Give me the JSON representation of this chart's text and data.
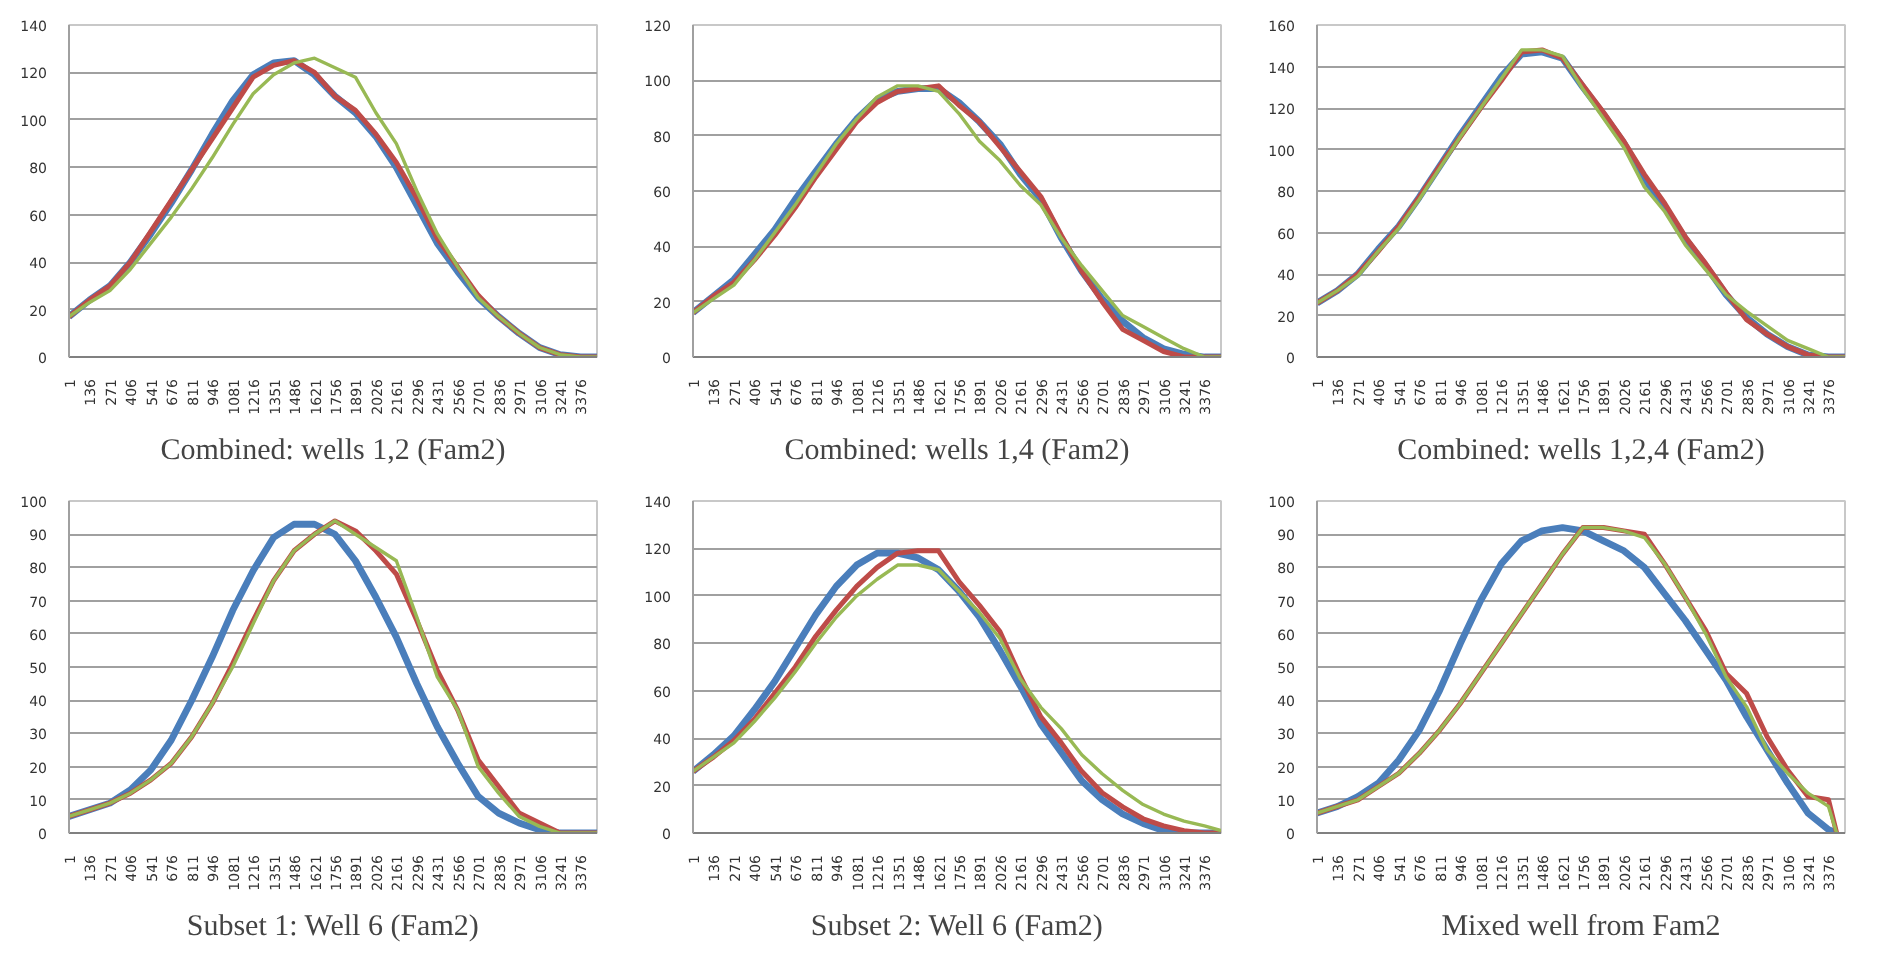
{
  "chart_data": [
    {
      "type": "line",
      "title": "Combined: wells 1,2 (Fam2)",
      "x": [
        1,
        136,
        271,
        406,
        541,
        676,
        811,
        946,
        1081,
        1216,
        1351,
        1486,
        1621,
        1756,
        1891,
        2026,
        2161,
        2296,
        2431,
        2566,
        2701,
        2836,
        2971,
        3106,
        3241,
        3376,
        3485
      ],
      "xlim": [
        1,
        3485
      ],
      "xticks": [
        1,
        136,
        271,
        406,
        541,
        676,
        811,
        946,
        1081,
        1216,
        1351,
        1486,
        1621,
        1756,
        1891,
        2026,
        2161,
        2296,
        2431,
        2566,
        2701,
        2836,
        2971,
        3106,
        3241,
        3376
      ],
      "ylim": [
        0,
        140
      ],
      "yticks": [
        0,
        20,
        40,
        60,
        80,
        100,
        120,
        140
      ],
      "grid": "y",
      "series": [
        {
          "color": "#4a7ebb",
          "values": [
            17,
            24,
            30,
            40,
            52,
            65,
            79,
            94,
            108,
            119,
            124,
            125,
            119,
            110,
            103,
            93,
            80,
            64,
            48,
            36,
            25,
            17,
            10,
            4,
            1,
            0,
            0
          ]
        },
        {
          "color": "#be4b48",
          "values": [
            17,
            24,
            30,
            40,
            53,
            66,
            79,
            92,
            105,
            118,
            123,
            125,
            120,
            110,
            104,
            94,
            82,
            67,
            50,
            38,
            26,
            17,
            10,
            4,
            1,
            0,
            0
          ]
        },
        {
          "color": "#98b954",
          "values": [
            17,
            23,
            28,
            37,
            48,
            59,
            71,
            84,
            98,
            111,
            119,
            124,
            126,
            122,
            118,
            103,
            90,
            70,
            52,
            38,
            25,
            17,
            10,
            4,
            1,
            0,
            0
          ]
        }
      ]
    },
    {
      "type": "line",
      "title": "Combined: wells 1,4 (Fam2)",
      "x": [
        1,
        136,
        271,
        406,
        541,
        676,
        811,
        946,
        1081,
        1216,
        1351,
        1486,
        1621,
        1756,
        1891,
        2026,
        2161,
        2296,
        2431,
        2566,
        2701,
        2836,
        2971,
        3106,
        3241,
        3376,
        3485
      ],
      "xlim": [
        1,
        3485
      ],
      "xticks": [
        1,
        136,
        271,
        406,
        541,
        676,
        811,
        946,
        1081,
        1216,
        1351,
        1486,
        1621,
        1756,
        1891,
        2026,
        2161,
        2296,
        2431,
        2566,
        2701,
        2836,
        2971,
        3106,
        3241,
        3376
      ],
      "ylim": [
        0,
        120
      ],
      "yticks": [
        0,
        20,
        40,
        60,
        80,
        100,
        120
      ],
      "grid": "y",
      "series": [
        {
          "color": "#4a7ebb",
          "values": [
            16,
            22,
            28,
            37,
            46,
            57,
            67,
            77,
            86,
            93,
            96,
            97,
            97,
            92,
            85,
            77,
            66,
            57,
            43,
            31,
            21,
            13,
            7,
            3,
            1,
            0,
            0
          ]
        },
        {
          "color": "#be4b48",
          "values": [
            16,
            22,
            27,
            35,
            44,
            54,
            65,
            75,
            85,
            92,
            96,
            97,
            98,
            91,
            85,
            76,
            67,
            58,
            44,
            31,
            20,
            10,
            6,
            2,
            0,
            0,
            0
          ]
        },
        {
          "color": "#98b954",
          "values": [
            16,
            21,
            26,
            35,
            45,
            55,
            66,
            77,
            86,
            94,
            98,
            98,
            96,
            88,
            78,
            71,
            62,
            55,
            43,
            33,
            24,
            15,
            11,
            7,
            3,
            0,
            0
          ]
        }
      ]
    },
    {
      "type": "line",
      "title": "Combined: wells 1,2,4 (Fam2)",
      "x": [
        1,
        136,
        271,
        406,
        541,
        676,
        811,
        946,
        1081,
        1216,
        1351,
        1486,
        1621,
        1756,
        1891,
        2026,
        2161,
        2296,
        2431,
        2566,
        2701,
        2836,
        2971,
        3106,
        3241,
        3376,
        3485
      ],
      "xlim": [
        1,
        3485
      ],
      "xticks": [
        1,
        136,
        271,
        406,
        541,
        676,
        811,
        946,
        1081,
        1216,
        1351,
        1486,
        1621,
        1756,
        1891,
        2026,
        2161,
        2296,
        2431,
        2566,
        2701,
        2836,
        2971,
        3106,
        3241,
        3376
      ],
      "ylim": [
        0,
        160
      ],
      "yticks": [
        0,
        20,
        40,
        60,
        80,
        100,
        120,
        140,
        160
      ],
      "grid": "y",
      "series": [
        {
          "color": "#4a7ebb",
          "values": [
            26,
            32,
            40,
            52,
            63,
            77,
            92,
            107,
            121,
            135,
            146,
            147,
            144,
            130,
            117,
            103,
            86,
            72,
            57,
            44,
            30,
            19,
            11,
            5,
            1,
            0,
            0
          ]
        },
        {
          "color": "#be4b48",
          "values": [
            26,
            32,
            40,
            51,
            63,
            77,
            92,
            106,
            120,
            133,
            147,
            148,
            144,
            131,
            118,
            104,
            88,
            74,
            58,
            45,
            31,
            18,
            11,
            5,
            1,
            0,
            0
          ]
        },
        {
          "color": "#98b954",
          "values": [
            26,
            32,
            39,
            51,
            62,
            76,
            91,
            106,
            120,
            134,
            148,
            148,
            145,
            129,
            115,
            101,
            82,
            70,
            54,
            42,
            30,
            22,
            15,
            8,
            4,
            0,
            0
          ]
        }
      ]
    },
    {
      "type": "line",
      "title": "Subset 1: Well 6 (Fam2)",
      "x": [
        1,
        136,
        271,
        406,
        541,
        676,
        811,
        946,
        1081,
        1216,
        1351,
        1486,
        1621,
        1756,
        1891,
        2026,
        2161,
        2296,
        2431,
        2566,
        2701,
        2836,
        2971,
        3106,
        3241,
        3376,
        3485
      ],
      "xlim": [
        1,
        3485
      ],
      "xticks": [
        1,
        136,
        271,
        406,
        541,
        676,
        811,
        946,
        1081,
        1216,
        1351,
        1486,
        1621,
        1756,
        1891,
        2026,
        2161,
        2296,
        2431,
        2566,
        2701,
        2836,
        2971,
        3106,
        3241,
        3376
      ],
      "ylim": [
        0,
        100
      ],
      "yticks": [
        0,
        10,
        20,
        30,
        40,
        50,
        60,
        70,
        80,
        90,
        100
      ],
      "grid": "y",
      "series": [
        {
          "color": "#4a7ebb",
          "values": [
            5,
            7,
            9,
            13,
            19,
            28,
            40,
            53,
            67,
            79,
            89,
            93,
            93,
            90,
            82,
            71,
            59,
            45,
            32,
            21,
            11,
            6,
            3,
            1,
            0,
            0,
            0
          ]
        },
        {
          "color": "#be4b48",
          "values": [
            5,
            7,
            9,
            12,
            16,
            21,
            29,
            39,
            51,
            64,
            76,
            85,
            90,
            94,
            91,
            85,
            78,
            64,
            49,
            37,
            22,
            14,
            6,
            3,
            0,
            0,
            0
          ]
        },
        {
          "color": "#98b954",
          "values": [
            5,
            7,
            9,
            12,
            16,
            21,
            29,
            39,
            50,
            63,
            76,
            85,
            90,
            94,
            90,
            86,
            82,
            65,
            47,
            37,
            20,
            12,
            5,
            2,
            0,
            0,
            0
          ]
        }
      ]
    },
    {
      "type": "line",
      "title": "Subset 2: Well 6 (Fam2)",
      "x": [
        1,
        136,
        271,
        406,
        541,
        676,
        811,
        946,
        1081,
        1216,
        1351,
        1486,
        1621,
        1756,
        1891,
        2026,
        2161,
        2296,
        2431,
        2566,
        2701,
        2836,
        2971,
        3106,
        3241,
        3376,
        3485
      ],
      "xlim": [
        1,
        3485
      ],
      "xticks": [
        1,
        136,
        271,
        406,
        541,
        676,
        811,
        946,
        1081,
        1216,
        1351,
        1486,
        1621,
        1756,
        1891,
        2026,
        2161,
        2296,
        2431,
        2566,
        2701,
        2836,
        2971,
        3106,
        3241,
        3376
      ],
      "ylim": [
        0,
        140
      ],
      "yticks": [
        0,
        20,
        40,
        60,
        80,
        100,
        120,
        140
      ],
      "grid": "y",
      "series": [
        {
          "color": "#4a7ebb",
          "values": [
            26,
            33,
            41,
            52,
            64,
            78,
            92,
            104,
            113,
            118,
            118,
            116,
            111,
            102,
            91,
            77,
            62,
            46,
            34,
            22,
            14,
            8,
            4,
            1,
            0,
            0,
            0
          ]
        },
        {
          "color": "#be4b48",
          "values": [
            26,
            32,
            39,
            48,
            59,
            70,
            83,
            94,
            104,
            112,
            118,
            119,
            119,
            106,
            96,
            85,
            66,
            49,
            38,
            26,
            17,
            11,
            6,
            3,
            1,
            0,
            0
          ]
        },
        {
          "color": "#98b954",
          "values": [
            26,
            32,
            38,
            47,
            57,
            68,
            80,
            91,
            100,
            107,
            113,
            113,
            111,
            102,
            93,
            82,
            65,
            53,
            44,
            33,
            25,
            18,
            12,
            8,
            5,
            3,
            1
          ]
        }
      ]
    },
    {
      "type": "line",
      "title": "Mixed well from Fam2",
      "x": [
        1,
        136,
        271,
        406,
        541,
        676,
        811,
        946,
        1081,
        1216,
        1351,
        1486,
        1621,
        1756,
        1891,
        2026,
        2161,
        2296,
        2431,
        2566,
        2701,
        2836,
        2971,
        3106,
        3241,
        3376,
        3430
      ],
      "xlim": [
        1,
        3485
      ],
      "xticks": [
        1,
        136,
        271,
        406,
        541,
        676,
        811,
        946,
        1081,
        1216,
        1351,
        1486,
        1621,
        1756,
        1891,
        2026,
        2161,
        2296,
        2431,
        2566,
        2701,
        2836,
        2971,
        3106,
        3241,
        3376
      ],
      "ylim": [
        0,
        100
      ],
      "yticks": [
        0,
        10,
        20,
        30,
        40,
        50,
        60,
        70,
        80,
        90,
        100
      ],
      "grid": "y",
      "series": [
        {
          "color": "#4a7ebb",
          "values": [
            6,
            8,
            11,
            15,
            22,
            31,
            43,
            57,
            70,
            81,
            88,
            91,
            92,
            91,
            88,
            85,
            80,
            72,
            64,
            55,
            46,
            35,
            25,
            15,
            6,
            1,
            0
          ]
        },
        {
          "color": "#be4b48",
          "values": [
            6,
            8,
            10,
            14,
            18,
            24,
            31,
            39,
            48,
            57,
            66,
            75,
            84,
            92,
            92,
            91,
            90,
            81,
            71,
            61,
            48,
            42,
            29,
            19,
            11,
            10,
            0
          ]
        },
        {
          "color": "#98b954",
          "values": [
            6,
            8,
            10,
            14,
            18,
            24,
            31,
            39,
            48,
            57,
            66,
            75,
            84,
            92,
            92,
            91,
            89,
            81,
            71,
            60,
            47,
            38,
            25,
            18,
            12,
            8,
            0
          ]
        }
      ]
    }
  ]
}
